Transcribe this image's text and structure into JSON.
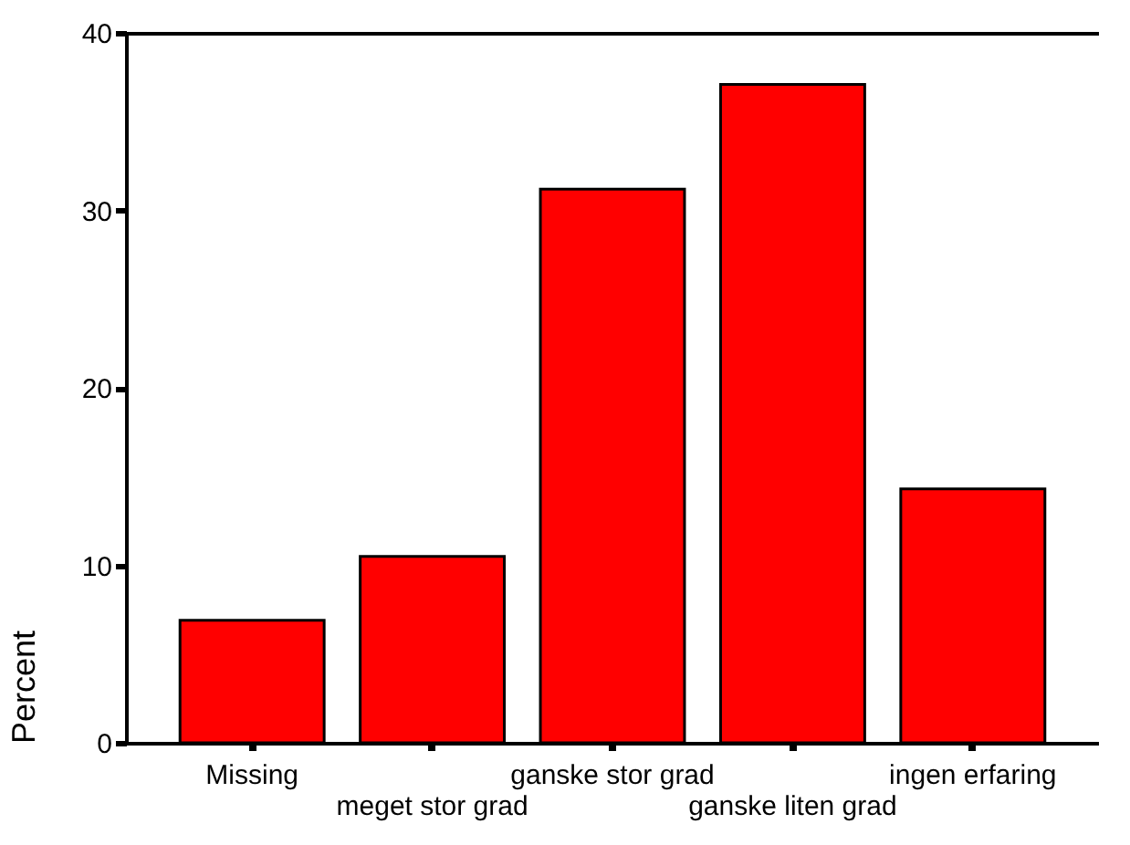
{
  "chart_data": {
    "type": "bar",
    "ylabel": "Percent",
    "categories": [
      "Missing",
      "meget stor grad",
      "ganske stor grad",
      "ganske liten grad",
      "ingen erfaring"
    ],
    "values": [
      6.9,
      10.5,
      31.2,
      37.1,
      14.3
    ],
    "color": "#ff0000",
    "ylim": [
      0,
      40
    ],
    "yticks": [
      0,
      10,
      20,
      30,
      40
    ],
    "grid": false
  }
}
